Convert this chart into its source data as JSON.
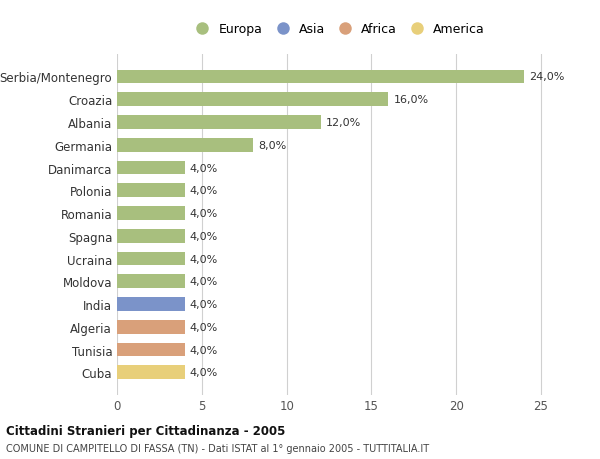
{
  "countries": [
    "Serbia/Montenegro",
    "Croazia",
    "Albania",
    "Germania",
    "Danimarca",
    "Polonia",
    "Romania",
    "Spagna",
    "Ucraina",
    "Moldova",
    "India",
    "Algeria",
    "Tunisia",
    "Cuba"
  ],
  "values": [
    24.0,
    16.0,
    12.0,
    8.0,
    4.0,
    4.0,
    4.0,
    4.0,
    4.0,
    4.0,
    4.0,
    4.0,
    4.0,
    4.0
  ],
  "labels": [
    "24,0%",
    "16,0%",
    "12,0%",
    "8,0%",
    "4,0%",
    "4,0%",
    "4,0%",
    "4,0%",
    "4,0%",
    "4,0%",
    "4,0%",
    "4,0%",
    "4,0%",
    "4,0%"
  ],
  "bar_colors": [
    "#a8bf7e",
    "#a8bf7e",
    "#a8bf7e",
    "#a8bf7e",
    "#a8bf7e",
    "#a8bf7e",
    "#a8bf7e",
    "#a8bf7e",
    "#a8bf7e",
    "#a8bf7e",
    "#7b93c9",
    "#d9a07a",
    "#d9a07a",
    "#e8cf7a"
  ],
  "legend_labels": [
    "Europa",
    "Asia",
    "Africa",
    "America"
  ],
  "legend_colors": [
    "#a8bf7e",
    "#7b93c9",
    "#d9a07a",
    "#e8cf7a"
  ],
  "xlim": [
    0,
    26
  ],
  "xticks": [
    0,
    5,
    10,
    15,
    20,
    25
  ],
  "title_line1": "Cittadini Stranieri per Cittadinanza - 2005",
  "title_line2": "COMUNE DI CAMPITELLO DI FASSA (TN) - Dati ISTAT al 1° gennaio 2005 - TUTTITALIA.IT",
  "background_color": "#ffffff",
  "grid_color": "#d0d0d0",
  "bar_height": 0.6
}
